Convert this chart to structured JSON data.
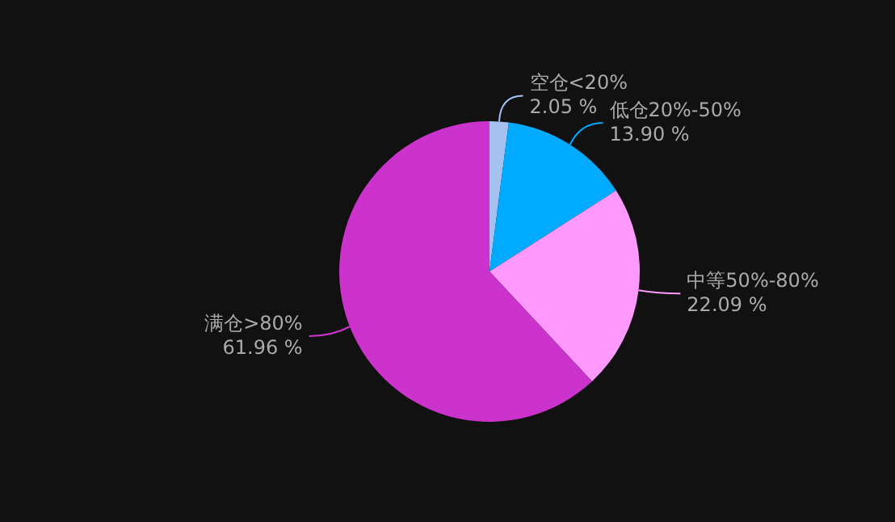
{
  "chart_data": {
    "type": "pie",
    "categories": [
      "空仓<20%",
      "低仓20%-50%",
      "中等50%-80%",
      "满仓>80%"
    ],
    "values": [
      2.05,
      13.9,
      22.09,
      61.96
    ],
    "value_labels": [
      "2.05 %",
      "13.90 %",
      "22.09 %",
      "61.96 %"
    ],
    "colors": [
      "#a4c1f0",
      "#00aaff",
      "#ff99ff",
      "#cc33cc"
    ],
    "legend": false
  }
}
